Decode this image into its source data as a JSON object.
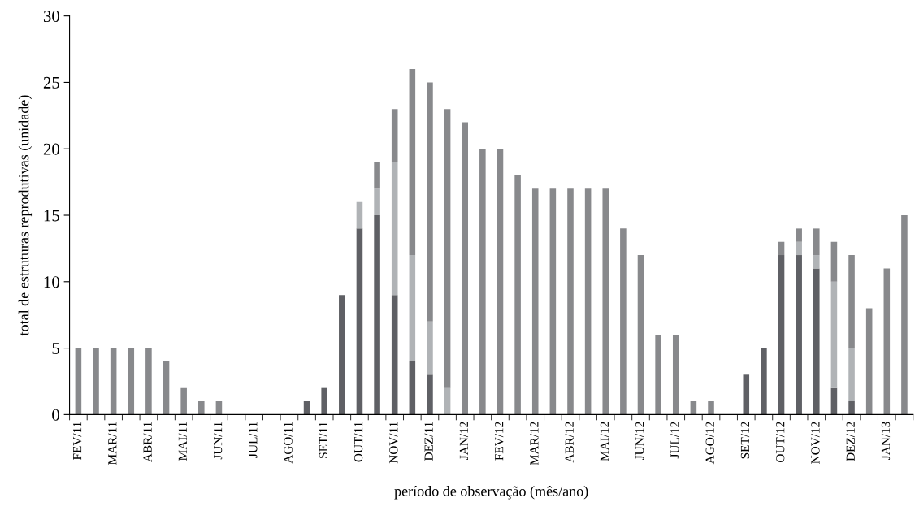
{
  "chart_data": {
    "type": "bar",
    "stacked": true,
    "xlabel": "período de observação (mês/ano)",
    "ylabel": "total de estruturas reprodutivas (unidade)",
    "categories": [
      "FEV/11",
      null,
      "MAR/11",
      null,
      "ABR/11",
      null,
      "MAI/11",
      null,
      "JUN/11",
      null,
      "JUL/11",
      null,
      "AGO/11",
      null,
      "SET/11",
      null,
      "OUT/11",
      null,
      "NOV/11",
      null,
      "DEZ/11",
      null,
      "JAN/12",
      null,
      "FEV/12",
      null,
      "MAR/12",
      null,
      "ABR/12",
      null,
      "MAI/12",
      null,
      "JUN/12",
      null,
      "JUL/12",
      null,
      "AGO/12",
      null,
      "SET/12",
      null,
      "OUT/12",
      null,
      "NOV/12",
      null,
      "DEZ/12",
      null,
      "JAN/13",
      null
    ],
    "series": [
      {
        "color": "#5f6065",
        "values": [
          0,
          0,
          0,
          0,
          0,
          0,
          0,
          0,
          0,
          0,
          0,
          0,
          0,
          1,
          2,
          9,
          14,
          15,
          9,
          4,
          3,
          0,
          0,
          0,
          0,
          0,
          0,
          0,
          0,
          0,
          0,
          0,
          0,
          0,
          0,
          0,
          0,
          0,
          3,
          5,
          12,
          12,
          11,
          2,
          1,
          0,
          0,
          0
        ]
      },
      {
        "color": "#b0b3b6",
        "values": [
          0,
          0,
          0,
          0,
          0,
          0,
          0,
          0,
          0,
          0,
          0,
          0,
          0,
          0,
          0,
          0,
          2,
          2,
          10,
          8,
          4,
          2,
          0,
          0,
          0,
          0,
          0,
          0,
          0,
          0,
          0,
          0,
          0,
          0,
          0,
          0,
          0,
          0,
          0,
          0,
          0,
          1,
          1,
          8,
          4,
          0,
          0,
          0
        ]
      },
      {
        "color": "#88898c",
        "values": [
          5,
          5,
          5,
          5,
          5,
          4,
          2,
          1,
          1,
          0,
          0,
          0,
          0,
          0,
          0,
          0,
          0,
          2,
          4,
          14,
          18,
          21,
          22,
          20,
          20,
          18,
          17,
          17,
          17,
          17,
          17,
          14,
          12,
          6,
          6,
          1,
          1,
          0,
          0,
          0,
          1,
          1,
          2,
          3,
          7,
          8,
          11,
          15
        ]
      }
    ],
    "ylim": [
      0,
      30
    ],
    "yticks": [
      0,
      5,
      10,
      15,
      20,
      25,
      30
    ],
    "grid": false
  }
}
